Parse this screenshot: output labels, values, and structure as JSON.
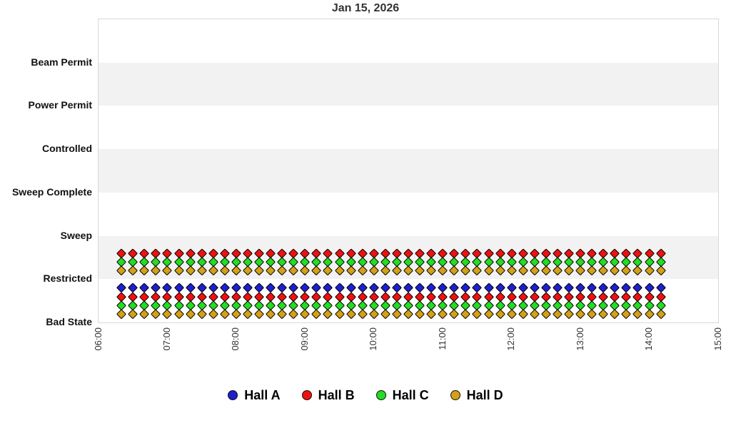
{
  "title": "Jan 15, 2026",
  "chart_data": {
    "type": "scatter",
    "title": "Jan 15, 2026",
    "y_axis": {
      "categories_bottom_to_top": [
        "Bad State",
        "Restricted",
        "Sweep",
        "Sweep Complete",
        "Controlled",
        "Power Permit",
        "Beam Permit"
      ],
      "grid": "alternating horizontal bands"
    },
    "x_axis": {
      "tick_labels": [
        "06:00",
        "07:00",
        "08:00",
        "09:00",
        "10:00",
        "11:00",
        "12:00",
        "13:00",
        "14:00",
        "15:00"
      ],
      "range_hours": [
        6,
        15
      ],
      "label_rotation_deg": -90
    },
    "legend": {
      "position": "bottom-center",
      "entries": [
        {
          "label": "Hall A",
          "color": "#1f1fcc"
        },
        {
          "label": "Hall B",
          "color": "#ee1111"
        },
        {
          "label": "Hall C",
          "color": "#22dd22"
        },
        {
          "label": "Hall D",
          "color": "#d4a017"
        }
      ]
    },
    "marker_shape": "diamond",
    "samples": {
      "start_time": "06:20",
      "end_time": "14:10",
      "interval_minutes": 10,
      "count": 48
    },
    "marker_rows": [
      {
        "hall": "Hall B",
        "state": "Restricted",
        "offset_above_state_line": 0.6,
        "color": "#ee1111"
      },
      {
        "hall": "Hall C",
        "state": "Restricted",
        "offset_above_state_line": 0.4,
        "color": "#22dd22"
      },
      {
        "hall": "Hall D",
        "state": "Restricted",
        "offset_above_state_line": 0.2,
        "color": "#d4a017"
      },
      {
        "hall": "Hall A",
        "state": "Bad State",
        "offset_above_state_line": 0.8,
        "color": "#1f1fcc"
      },
      {
        "hall": "Hall B",
        "state": "Bad State",
        "offset_above_state_line": 0.6,
        "color": "#ee1111"
      },
      {
        "hall": "Hall C",
        "state": "Bad State",
        "offset_above_state_line": 0.4,
        "color": "#22dd22"
      },
      {
        "hall": "Hall D",
        "state": "Bad State",
        "offset_above_state_line": 0.2,
        "color": "#d4a017"
      }
    ],
    "band_colors": {
      "shaded": "#f2f2f2",
      "unshaded": "#ffffff"
    },
    "plot_border_color": "#d9d9d9"
  }
}
